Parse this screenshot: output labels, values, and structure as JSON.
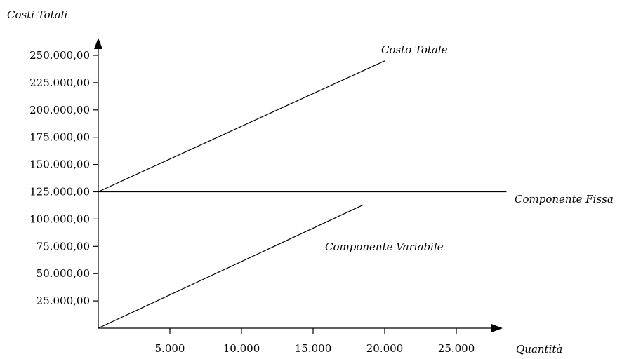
{
  "chart_data": {
    "type": "line",
    "ylabel": "Costi Totali",
    "xlabel": "Quantità",
    "xlim": [
      0,
      30000
    ],
    "ylim": [
      0,
      250000
    ],
    "x_ticks": [
      {
        "value": 5000,
        "label": "5.000"
      },
      {
        "value": 10000,
        "label": "10.000"
      },
      {
        "value": 15000,
        "label": "15.000"
      },
      {
        "value": 20000,
        "label": "20.000"
      },
      {
        "value": 25000,
        "label": "25.000"
      }
    ],
    "y_ticks": [
      {
        "value": 25000,
        "label": "25.000,00"
      },
      {
        "value": 50000,
        "label": "50.000,00"
      },
      {
        "value": 75000,
        "label": "75.000,00"
      },
      {
        "value": 100000,
        "label": "100.000,00"
      },
      {
        "value": 125000,
        "label": "125.000,00"
      },
      {
        "value": 150000,
        "label": "150.000,00"
      },
      {
        "value": 175000,
        "label": "175.000,00"
      },
      {
        "value": 200000,
        "label": "200.000,00"
      },
      {
        "value": 225000,
        "label": "225.000,00"
      },
      {
        "value": 250000,
        "label": "250.000,00"
      }
    ],
    "series": [
      {
        "name": "Costo Totale",
        "x": [
          0,
          20000
        ],
        "y": [
          125000,
          245000
        ]
      },
      {
        "name": "Componente Fissa",
        "x": [
          0,
          28500
        ],
        "y": [
          125000,
          125000
        ]
      },
      {
        "name": "Componente Variabile",
        "x": [
          0,
          18500
        ],
        "y": [
          0,
          113000
        ]
      }
    ],
    "grid": false,
    "legend": "none"
  }
}
